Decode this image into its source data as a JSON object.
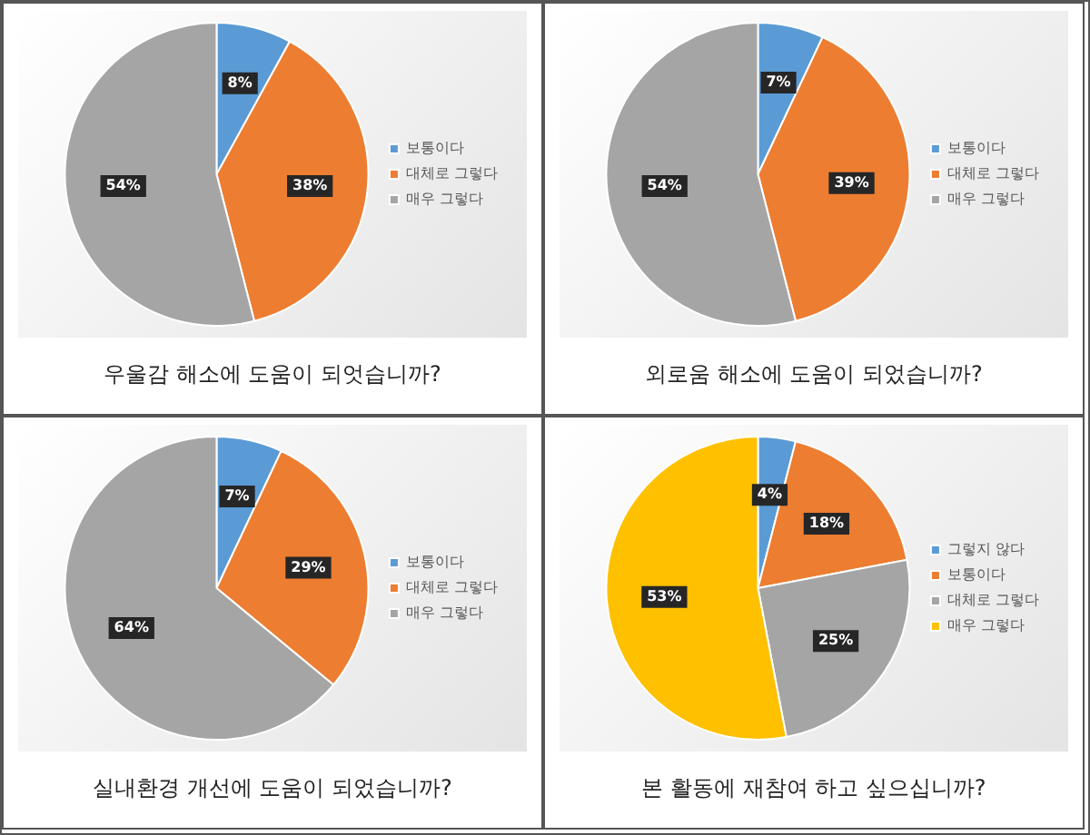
{
  "chart_data": [
    {
      "type": "pie",
      "title": "우울감 해소에 도움이 되엇습니까?",
      "categories": [
        "보통이다",
        "대체로 그렇다",
        "매우 그렇다"
      ],
      "values": [
        8,
        38,
        54
      ],
      "colors": [
        "#5b9bd5",
        "#ed7d31",
        "#a5a5a5"
      ],
      "value_labels": [
        "8%",
        "38%",
        "54%"
      ],
      "legend": "right"
    },
    {
      "type": "pie",
      "title": "외로움 해소에 도움이 되었습니까?",
      "categories": [
        "보통이다",
        "대체로 그렇다",
        "매우 그렇다"
      ],
      "values": [
        7,
        39,
        54
      ],
      "colors": [
        "#5b9bd5",
        "#ed7d31",
        "#a5a5a5"
      ],
      "value_labels": [
        "7%",
        "39%",
        "54%"
      ],
      "legend": "right"
    },
    {
      "type": "pie",
      "title": "실내환경 개선에  도움이 되었습니까?",
      "categories": [
        "보통이다",
        "대체로 그렇다",
        "매우 그렇다"
      ],
      "values": [
        7,
        29,
        64
      ],
      "colors": [
        "#5b9bd5",
        "#ed7d31",
        "#a5a5a5"
      ],
      "value_labels": [
        "7%",
        "29%",
        "64%"
      ],
      "legend": "right"
    },
    {
      "type": "pie",
      "title": "본 활동에 재참여 하고 싶으십니까?",
      "categories": [
        "그렇지 않다",
        "보통이다",
        "대체로 그렇다",
        "매우 그렇다"
      ],
      "values": [
        4,
        18,
        25,
        53
      ],
      "colors": [
        "#5b9bd5",
        "#ed7d31",
        "#a5a5a5",
        "#ffc000"
      ],
      "value_labels": [
        "4%",
        "18%",
        "25%",
        "53%"
      ],
      "legend": "right"
    }
  ]
}
